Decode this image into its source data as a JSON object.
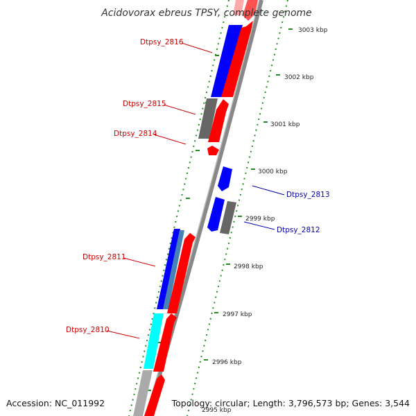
{
  "title": "Acidovorax ebreus TPSY, complete genome",
  "footer": {
    "accession": "Accession: NC_011992",
    "summary": "Topology: circular; Length: 3,796,573 bp; Genes: 3,544"
  },
  "colors": {
    "forward": "#ff0000",
    "reverse": "#0000ff",
    "pseudo": "#666666",
    "rna": "#00ffff",
    "steelblue": "#4682b4",
    "backbone": "#888888",
    "tick": "#228b22",
    "label_forward": "#cc0000",
    "label_reverse": "#0000aa"
  },
  "axis": {
    "unit": "kbp",
    "ticks": [
      {
        "value": 2996,
        "label": "2996 kbp"
      },
      {
        "value": 2997,
        "label": "2997 kbp"
      },
      {
        "value": 2998,
        "label": "2998 kbp"
      },
      {
        "value": 2999,
        "label": "2999 kbp"
      },
      {
        "value": 3000,
        "label": "3000 kbp"
      },
      {
        "value": 3001,
        "label": "3001 kbp"
      },
      {
        "value": 3002,
        "label": "3002 kbp"
      },
      {
        "value": 3003,
        "label": "3003 kbp"
      }
    ],
    "extra_tick_label": "2995 kbp"
  },
  "genes": [
    {
      "id": "Dtpsy_2816",
      "label": "Dtpsy_2816",
      "strand": "reverse"
    },
    {
      "id": "Dtpsy_2815",
      "label": "Dtpsy_2815",
      "strand": "forward"
    },
    {
      "id": "Dtpsy_2814",
      "label": "Dtpsy_2814",
      "strand": "forward"
    },
    {
      "id": "Dtpsy_2813",
      "label": "Dtpsy_2813",
      "strand": "reverse"
    },
    {
      "id": "Dtpsy_2812",
      "label": "Dtpsy_2812",
      "strand": "reverse"
    },
    {
      "id": "Dtpsy_2811",
      "label": "Dtpsy_2811",
      "strand": "forward"
    },
    {
      "id": "Dtpsy_2810",
      "label": "Dtpsy_2810",
      "strand": "forward"
    }
  ]
}
